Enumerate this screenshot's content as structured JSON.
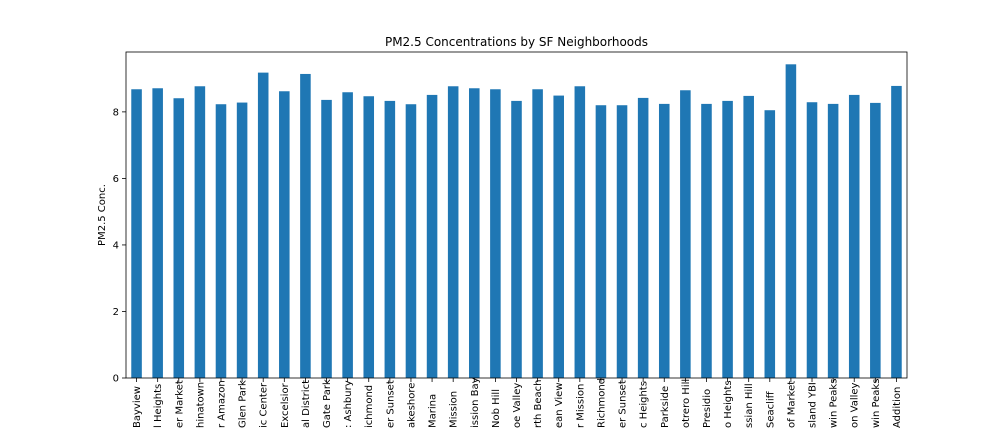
{
  "chart_data": {
    "type": "bar",
    "title": "PM2.5 Concentrations by SF Neighborhoods",
    "xlabel": "",
    "ylabel": "PM2.5 Conc.",
    "ylim": [
      0,
      9.8
    ],
    "yticks": [
      0,
      2,
      4,
      6,
      8
    ],
    "grid": false,
    "legend": "none",
    "bar_color": "#1f77b4",
    "categories": [
      "Bayview",
      "Bernal Heights",
      "Castro/Upper Market",
      "Chinatown",
      "Excelsior-Outer Amazon",
      "Glen Park",
      "Civic Center",
      "Excelsior",
      "Financial District",
      "Golden Gate Park",
      "Haight Ashbury",
      "Inner Richmond",
      "Inner Sunset",
      "Lakeshore",
      "Marina",
      "Mission",
      "Mission Bay",
      "Nob Hill",
      "Noe Valley",
      "North Beach",
      "Ocean View",
      "Outer Mission",
      "Outer Richmond",
      "Outer Sunset",
      "Pacific Heights",
      "Parkside",
      "Potrero Hill",
      "Presidio",
      "Presidio Heights",
      "Russian Hill",
      "Seacliff",
      "South of Market",
      "Treasure Island YBI",
      "Twin Peaks",
      "Visitacion Valley",
      "West of Twin Peaks",
      "Western Addition"
    ],
    "visible_labels": [
      "Bayview",
      "l Heights",
      "er Market",
      "hinatown",
      "r Amazon",
      "Glen Park",
      "ic Center",
      "Excelsior",
      "al District",
      "Gate Park",
      ": Ashbury",
      "ichmond",
      "er Sunset",
      "akeshore",
      "Marina",
      "Mission",
      "ission Bay",
      "Nob Hill",
      "oe Valley",
      "rth Beach",
      "ean View",
      "r Mission",
      "Richmond",
      "er Sunset",
      "c Heights",
      "Parkside",
      "otrero Hill",
      "Presidio",
      "o Heights",
      "ssian Hill",
      "Seacliff",
      "of Market",
      "sland YBI",
      "win Peaks",
      "on Valley",
      "win Peaks",
      "Addition"
    ],
    "values": [
      8.68,
      8.71,
      8.41,
      8.77,
      8.23,
      8.28,
      9.18,
      8.62,
      9.14,
      8.36,
      8.59,
      8.47,
      8.33,
      8.23,
      8.51,
      8.77,
      8.71,
      8.68,
      8.33,
      8.68,
      8.49,
      8.77,
      8.2,
      8.2,
      8.42,
      8.24,
      8.65,
      8.24,
      8.33,
      8.48,
      8.05,
      9.43,
      8.29,
      8.24,
      8.51,
      8.27,
      8.78
    ]
  }
}
